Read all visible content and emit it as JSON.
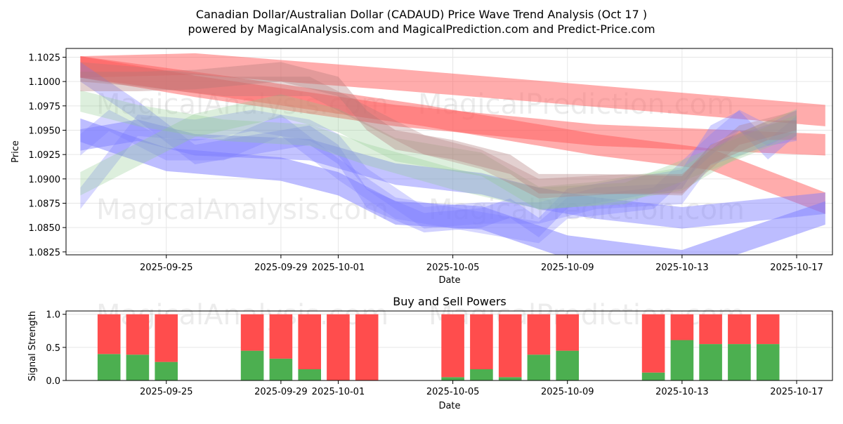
{
  "title_line1": "Canadian Dollar/Australian Dollar (CADAUD) Price Wave Trend Analysis (Oct 17 )",
  "title_line2": "powered by MagicalAnalysis.com and MagicalPrediction.com and Predict-Price.com",
  "watermarks": [
    "MagicalAnalysis.com",
    "MagicalPrediction.com"
  ],
  "colors": {
    "up_band": "#ff5a5a",
    "down_band": "#7b7bff",
    "neutral_band": "#8fca8f",
    "mixed_band": "#b07878",
    "buy": "#4caf50",
    "sell": "#ff4d4d",
    "grid": "#e6e6e6",
    "axis": "#000000"
  },
  "chart_data": [
    {
      "type": "area",
      "name": "price-wave-trend",
      "xlabel": "Date",
      "ylabel": "Price",
      "xlim": [
        "2025-09-21T12:00",
        "2025-10-18T06:00"
      ],
      "ylim": [
        1.0822,
        1.1034
      ],
      "grid": true,
      "x_ticks": [
        "2025-09-25",
        "2025-09-29",
        "2025-10-01",
        "2025-10-05",
        "2025-10-09",
        "2025-10-13",
        "2025-10-17"
      ],
      "y_ticks": [
        1.0825,
        1.085,
        1.0875,
        1.09,
        1.0925,
        1.095,
        1.0975,
        1.1,
        1.1025
      ],
      "series": [
        {
          "name": "long-up-red-1",
          "color": "up",
          "opacity": 0.5,
          "width": 0.0022,
          "points": [
            [
              "2025-09-22",
              1.1015
            ],
            [
              "2025-09-26",
              1.0995
            ],
            [
              "2025-10-03",
              1.0965
            ],
            [
              "2025-10-10",
              1.0945
            ],
            [
              "2025-10-18",
              1.0935
            ]
          ]
        },
        {
          "name": "long-up-red-2",
          "color": "up",
          "opacity": 0.5,
          "width": 0.0022,
          "points": [
            [
              "2025-09-22",
              1.1015
            ],
            [
              "2025-09-26",
              1.1018
            ],
            [
              "2025-10-03",
              1.1002
            ],
            [
              "2025-10-10",
              1.0985
            ],
            [
              "2025-10-18",
              1.0965
            ]
          ]
        },
        {
          "name": "long-down-red",
          "color": "up",
          "opacity": 0.5,
          "width": 0.0022,
          "points": [
            [
              "2025-09-22",
              1.1015
            ],
            [
              "2025-09-27",
              1.0995
            ],
            [
              "2025-10-04",
              1.0965
            ],
            [
              "2025-10-10",
              1.0935
            ],
            [
              "2025-10-14",
              1.092
            ],
            [
              "2025-10-18",
              1.0875
            ]
          ]
        },
        {
          "name": "blue-bottom-band",
          "color": "down",
          "opacity": 0.5,
          "width": 0.0024,
          "points": [
            [
              "2025-09-22",
              1.095
            ],
            [
              "2025-09-25",
              1.092
            ],
            [
              "2025-09-29",
              1.091
            ],
            [
              "2025-10-01",
              1.0895
            ],
            [
              "2025-10-03",
              1.0865
            ],
            [
              "2025-10-06",
              1.086
            ],
            [
              "2025-10-09",
              1.083
            ],
            [
              "2025-10-13",
              1.0815
            ],
            [
              "2025-10-18",
              1.0865
            ]
          ]
        },
        {
          "name": "blue-mid-band",
          "color": "down",
          "opacity": 0.45,
          "width": 0.0022,
          "points": [
            [
              "2025-09-22",
              1.094
            ],
            [
              "2025-09-24",
              1.095
            ],
            [
              "2025-09-26",
              1.0935
            ],
            [
              "2025-09-30",
              1.093
            ],
            [
              "2025-10-03",
              1.0905
            ],
            [
              "2025-10-06",
              1.0895
            ],
            [
              "2025-10-08",
              1.088
            ],
            [
              "2025-10-10",
              1.087
            ],
            [
              "2025-10-13",
              1.086
            ],
            [
              "2025-10-18",
              1.0875
            ]
          ]
        },
        {
          "name": "blue-wave-1",
          "color": "down",
          "opacity": 0.35,
          "width": 0.002,
          "points": [
            [
              "2025-09-22",
              1.101
            ],
            [
              "2025-09-24",
              1.097
            ],
            [
              "2025-09-26",
              1.0925
            ],
            [
              "2025-09-28",
              1.0935
            ],
            [
              "2025-09-30",
              1.0945
            ],
            [
              "2025-10-01",
              1.0925
            ],
            [
              "2025-10-02",
              1.088
            ],
            [
              "2025-10-04",
              1.0855
            ],
            [
              "2025-10-06",
              1.086
            ],
            [
              "2025-10-07",
              1.087
            ],
            [
              "2025-10-08",
              1.085
            ],
            [
              "2025-10-09",
              1.088
            ],
            [
              "2025-10-11",
              1.089
            ],
            [
              "2025-10-13",
              1.09
            ],
            [
              "2025-10-14",
              1.0945
            ],
            [
              "2025-10-15",
              1.096
            ],
            [
              "2025-10-16",
              1.093
            ],
            [
              "2025-10-17",
              1.0955
            ]
          ]
        },
        {
          "name": "blue-wave-2",
          "color": "down",
          "opacity": 0.3,
          "width": 0.0022,
          "points": [
            [
              "2025-09-22",
              1.088
            ],
            [
              "2025-09-24",
              1.0955
            ],
            [
              "2025-09-26",
              1.095
            ],
            [
              "2025-09-28",
              1.096
            ],
            [
              "2025-09-30",
              1.095
            ],
            [
              "2025-10-01",
              1.0935
            ],
            [
              "2025-10-02",
              1.09
            ],
            [
              "2025-10-04",
              1.086
            ],
            [
              "2025-10-06",
              1.0865
            ],
            [
              "2025-10-08",
              1.0865
            ],
            [
              "2025-10-10",
              1.088
            ],
            [
              "2025-10-13",
              1.0885
            ],
            [
              "2025-10-14",
              1.0925
            ],
            [
              "2025-10-16",
              1.0945
            ],
            [
              "2025-10-17",
              1.095
            ]
          ]
        },
        {
          "name": "purple-wave",
          "color": "down",
          "opacity": 0.3,
          "width": 0.0022,
          "points": [
            [
              "2025-09-22",
              1.0935
            ],
            [
              "2025-09-23",
              1.096
            ],
            [
              "2025-09-25",
              1.093
            ],
            [
              "2025-09-27",
              1.093
            ],
            [
              "2025-09-29",
              1.0955
            ],
            [
              "2025-10-01",
              1.091
            ],
            [
              "2025-10-03",
              1.087
            ],
            [
              "2025-10-06",
              1.0855
            ],
            [
              "2025-10-08",
              1.0845
            ],
            [
              "2025-10-09",
              1.087
            ],
            [
              "2025-10-12",
              1.088
            ],
            [
              "2025-10-14",
              1.0935
            ],
            [
              "2025-10-15",
              1.096
            ],
            [
              "2025-10-16",
              1.0945
            ],
            [
              "2025-10-17",
              1.096
            ]
          ]
        },
        {
          "name": "green-wave-1",
          "color": "neutral",
          "opacity": 0.3,
          "width": 0.0024,
          "points": [
            [
              "2025-09-22",
              1.0895
            ],
            [
              "2025-09-24",
              1.0925
            ],
            [
              "2025-09-26",
              1.0955
            ],
            [
              "2025-09-29",
              1.0975
            ],
            [
              "2025-10-01",
              1.096
            ],
            [
              "2025-10-03",
              1.093
            ],
            [
              "2025-10-06",
              1.0915
            ],
            [
              "2025-10-08",
              1.088
            ],
            [
              "2025-10-10",
              1.0885
            ],
            [
              "2025-10-13",
              1.09
            ],
            [
              "2025-10-15",
              1.0935
            ],
            [
              "2025-10-17",
              1.096
            ]
          ]
        },
        {
          "name": "green-wave-2",
          "color": "neutral",
          "opacity": 0.3,
          "width": 0.0022,
          "points": [
            [
              "2025-09-22",
              1.098
            ],
            [
              "2025-09-24",
              1.0965
            ],
            [
              "2025-09-27",
              1.095
            ],
            [
              "2025-09-30",
              1.0945
            ],
            [
              "2025-10-02",
              1.0925
            ],
            [
              "2025-10-05",
              1.09
            ],
            [
              "2025-10-08",
              1.088
            ],
            [
              "2025-10-11",
              1.0885
            ],
            [
              "2025-10-14",
              1.092
            ],
            [
              "2025-10-17",
              1.0955
            ]
          ]
        },
        {
          "name": "brown-wave-1",
          "color": "mixed",
          "opacity": 0.35,
          "width": 0.002,
          "points": [
            [
              "2025-09-22",
              1.1
            ],
            [
              "2025-09-24",
              1.1
            ],
            [
              "2025-09-26",
              1.1002
            ],
            [
              "2025-09-29",
              1.101
            ],
            [
              "2025-10-01",
              1.0995
            ],
            [
              "2025-10-02",
              1.096
            ],
            [
              "2025-10-03",
              1.094
            ],
            [
              "2025-10-05",
              1.093
            ],
            [
              "2025-10-07",
              1.0915
            ],
            [
              "2025-10-08",
              1.0895
            ],
            [
              "2025-10-10",
              1.0895
            ],
            [
              "2025-10-13",
              1.0893
            ],
            [
              "2025-10-14",
              1.0925
            ],
            [
              "2025-10-16",
              1.095
            ],
            [
              "2025-10-17",
              1.095
            ]
          ]
        },
        {
          "name": "brown-wave-2",
          "color": "mixed",
          "opacity": 0.3,
          "width": 0.002,
          "points": [
            [
              "2025-09-22",
              1.101
            ],
            [
              "2025-09-24",
              1.1005
            ],
            [
              "2025-09-27",
              1.0995
            ],
            [
              "2025-09-30",
              1.0995
            ],
            [
              "2025-10-02",
              1.0965
            ],
            [
              "2025-10-04",
              1.0935
            ],
            [
              "2025-10-06",
              1.092
            ],
            [
              "2025-10-08",
              1.089
            ],
            [
              "2025-10-11",
              1.0895
            ],
            [
              "2025-10-13",
              1.0895
            ],
            [
              "2025-10-15",
              1.0945
            ],
            [
              "2025-10-17",
              1.096
            ]
          ]
        }
      ]
    },
    {
      "type": "bar",
      "name": "buy-sell-powers",
      "title": "Buy and Sell Powers",
      "xlabel": "Date",
      "ylabel": "Signal Strength",
      "xlim": [
        "2025-09-21T12:00",
        "2025-10-18T06:00"
      ],
      "ylim": [
        0,
        1.05
      ],
      "grid": true,
      "x_ticks": [
        "2025-09-25",
        "2025-09-29",
        "2025-10-01",
        "2025-10-05",
        "2025-10-09",
        "2025-10-13",
        "2025-10-17"
      ],
      "y_ticks": [
        0.0,
        0.5,
        1.0
      ],
      "dates": [
        "2025-09-23",
        "2025-09-24",
        "2025-09-25",
        "2025-09-28",
        "2025-09-29",
        "2025-09-30",
        "2025-10-01",
        "2025-10-02",
        "2025-10-05",
        "2025-10-06",
        "2025-10-07",
        "2025-10-08",
        "2025-10-09",
        "2025-10-12",
        "2025-10-13",
        "2025-10-14",
        "2025-10-15",
        "2025-10-16"
      ],
      "series": [
        {
          "name": "Buy",
          "color": "buy",
          "values": [
            0.4,
            0.39,
            0.28,
            0.45,
            0.33,
            0.17,
            0.0,
            0.0,
            0.05,
            0.17,
            0.05,
            0.39,
            0.45,
            0.12,
            0.61,
            0.55,
            0.55,
            0.55
          ]
        },
        {
          "name": "Sell",
          "color": "sell",
          "values": [
            0.6,
            0.61,
            0.72,
            0.55,
            0.67,
            0.83,
            1.0,
            1.0,
            0.95,
            0.83,
            0.95,
            0.61,
            0.55,
            0.88,
            0.39,
            0.45,
            0.45,
            0.45
          ]
        }
      ]
    }
  ]
}
